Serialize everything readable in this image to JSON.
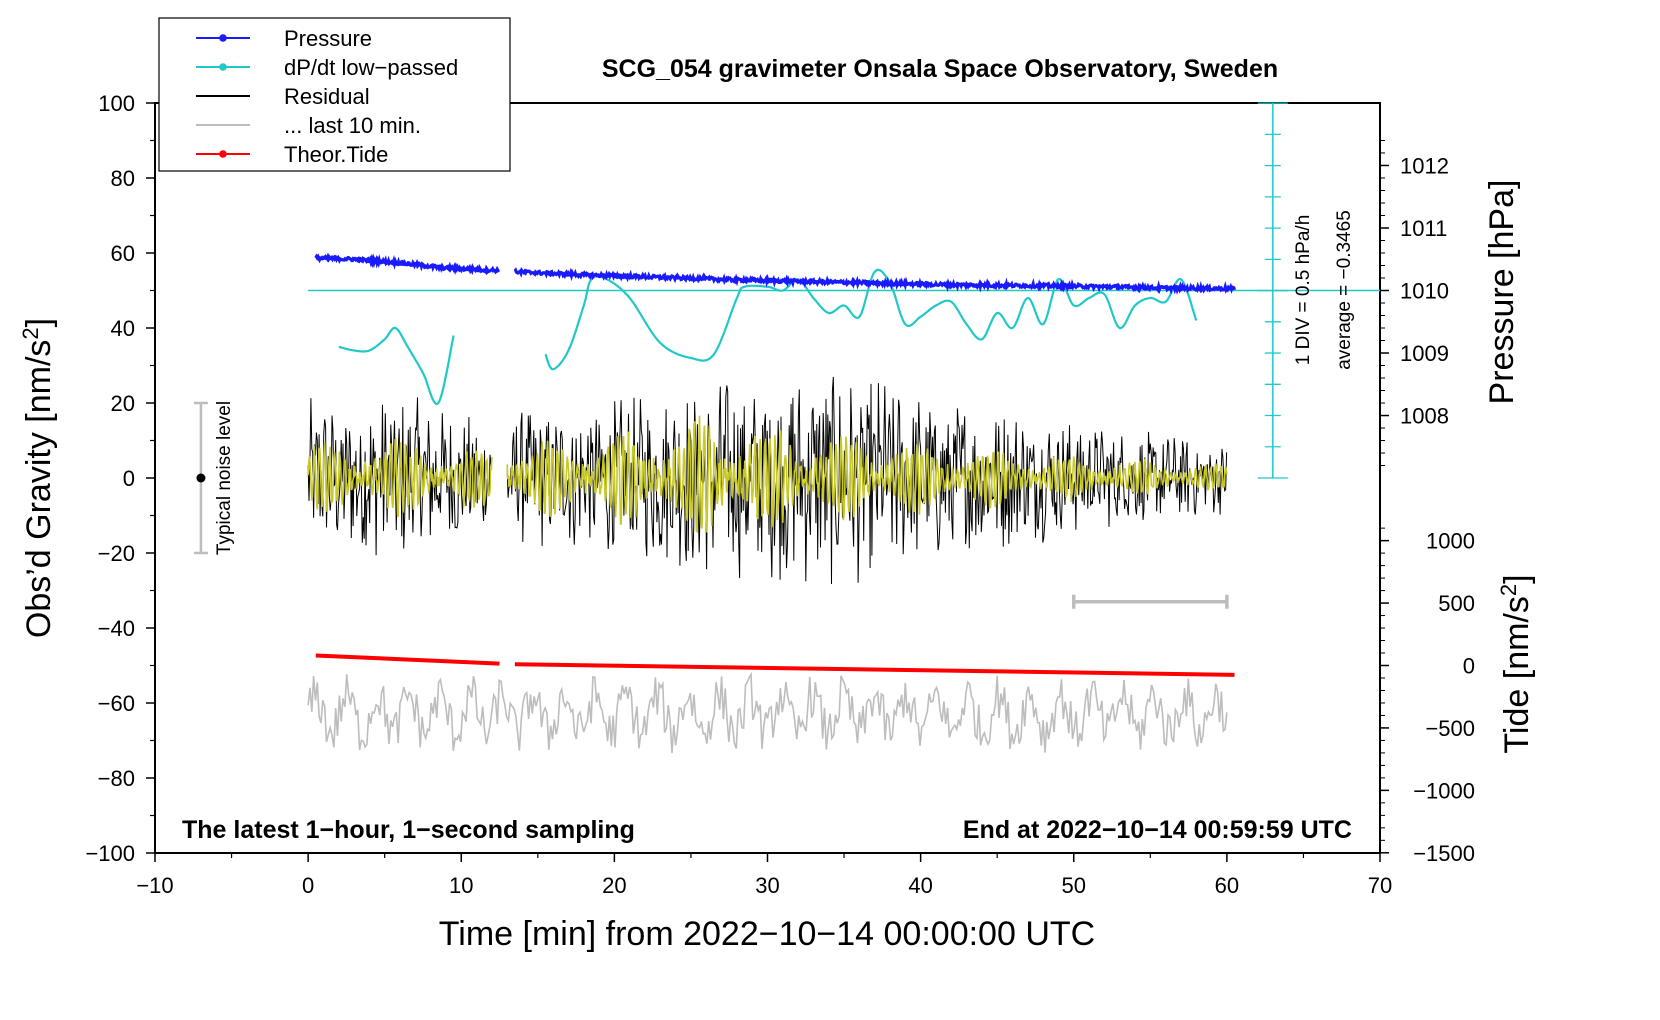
{
  "chart_data": {
    "type": "line",
    "title": "SCG_054 gravimeter Onsala Space Observatory, Sweden",
    "xlabel": "Time [min] from 2022−10−14 00:00:00 UTC",
    "ylabel_left": "Obs’d Gravity [nm/s",
    "ylabel_left_sup": "2",
    "ylabel_left_close": "]",
    "ylabel_right_pressure": "Pressure [hPa]",
    "ylabel_right_tide": "Tide [nm/s",
    "ylabel_right_tide_sup": "2",
    "ylabel_right_tide_close": "]",
    "xlim": [
      -10,
      70
    ],
    "ylim": [
      -100,
      100
    ],
    "x_ticks": [
      -10,
      0,
      10,
      20,
      30,
      40,
      50,
      60,
      70
    ],
    "x_tick_labels": [
      "−10",
      "0",
      "10",
      "20",
      "30",
      "40",
      "50",
      "60",
      "70"
    ],
    "y_ticks": [
      -100,
      -80,
      -60,
      -40,
      -20,
      0,
      20,
      40,
      60,
      80,
      100
    ],
    "y_tick_labels": [
      "−100",
      "−80",
      "−60",
      "−40",
      "−20",
      "0",
      "20",
      "40",
      "60",
      "80",
      "100"
    ],
    "pressure_ticks": [
      1008,
      1009,
      1010,
      1011,
      1012
    ],
    "pressure_axis": {
      "gravity_at_1010": 50,
      "gravity_per_hPa": 16.67
    },
    "tide_ticks": [
      -1500,
      -1000,
      -500,
      0,
      500,
      1000
    ],
    "tide_tick_labels": [
      "−1500",
      "−1000",
      "−500",
      "0",
      "500",
      "1000"
    ],
    "tide_axis": {
      "gravity_at_0": -50,
      "gravity_per_1000": 33.3
    },
    "legend": {
      "position": "top-left",
      "entries": [
        {
          "label": "Pressure",
          "color": "#1a1aff",
          "marker": true
        },
        {
          "label": "dP/dt low−passed",
          "color": "#22c8c8",
          "marker": true
        },
        {
          "label": "Residual",
          "color": "#000000",
          "marker": false
        },
        {
          "label": "... last 10 min.",
          "color": "#bdbdbd",
          "marker": false
        },
        {
          "label": "Theor.Tide",
          "color": "#ff0000",
          "marker": true
        }
      ]
    },
    "dpdt_annotation": {
      "line1": "1 DIV = 0.5 hPa/h",
      "line2": "average = −0.3465",
      "scale_x": 63,
      "scale_range_gravity": [
        0,
        100
      ],
      "reference_level_gravity": 50
    },
    "noise_level": {
      "label": "Typical noise level",
      "x": -7,
      "center": 0,
      "range": [
        -20,
        20
      ]
    },
    "last10_bar": {
      "x_range": [
        50,
        60
      ],
      "level": -33
    },
    "footer_left": "The latest 1−hour, 1−second sampling",
    "footer_right": "End at 2022−10−14 00:59:59 UTC",
    "series": [
      {
        "name": "Pressure",
        "unit": "hPa",
        "segments": [
          {
            "x": [
              0.5,
              3,
              6,
              9,
              12.5
            ],
            "y": [
              1010.52,
              1010.5,
              1010.44,
              1010.36,
              1010.32
            ]
          },
          {
            "x": [
              13.5,
              18,
              22,
              28,
              35,
              42,
              50,
              56,
              60.5
            ],
            "y": [
              1010.3,
              1010.25,
              1010.22,
              1010.17,
              1010.13,
              1010.09,
              1010.07,
              1010.04,
              1010.03
            ]
          }
        ]
      },
      {
        "name": "dP/dt low-passed",
        "unit": "gravity-axis units",
        "segments": [
          {
            "x": [
              2,
              3,
              4,
              5,
              5.7,
              6.5,
              7.5,
              8.5,
              9.5
            ],
            "y": [
              35,
              34,
              34,
              37,
              40,
              35,
              28,
              20,
              38
            ]
          },
          {
            "x": [
              15.5,
              16,
              17,
              18,
              18.5,
              19.5,
              21,
              23,
              25,
              26.5,
              28,
              28.5,
              30,
              31,
              32,
              33,
              34,
              35,
              36,
              37,
              38,
              39,
              40,
              41,
              42,
              43,
              44,
              45,
              46,
              47,
              48,
              49,
              50,
              51,
              52,
              53,
              54,
              55,
              56,
              57,
              58
            ],
            "y": [
              33,
              29,
              34,
              46,
              53,
              53,
              48,
              36,
              32,
              33,
              48,
              51,
              51,
              50,
              53,
              48,
              44,
              46,
              43,
              55,
              52,
              41,
              43,
              46,
              47,
              41,
              37,
              44,
              40,
              48,
              41,
              53,
              46,
              48,
              49,
              40,
              46,
              48,
              47,
              53,
              42
            ]
          }
        ]
      },
      {
        "name": "Residual",
        "unit": "nm/s2",
        "segments": [
          {
            "x_range": [
              0,
              12
            ],
            "amplitude": [
              22,
              20,
              24,
              22,
              18,
              16
            ]
          },
          {
            "x_range": [
              13,
              60
            ],
            "amplitude": [
              18,
              20,
              22,
              26,
              28,
              30,
              26,
              22,
              18,
              14,
              12,
              10
            ]
          }
        ]
      },
      {
        "name": "Residual smoothed",
        "color": "#c8c82a",
        "unit": "nm/s2",
        "segments": [
          {
            "x_range": [
              0,
              12
            ],
            "amplitude": [
              9,
              8,
              10,
              9,
              8,
              7
            ]
          },
          {
            "x_range": [
              13,
              60
            ],
            "amplitude": [
              8,
              9,
              11,
              14,
              12,
              10,
              9,
              7,
              6,
              5,
              4,
              3
            ]
          }
        ]
      },
      {
        "name": "... last 10 min.",
        "unit": "nm/s2",
        "segments": [
          {
            "x_range": [
              0,
              60
            ],
            "mean": -63,
            "amplitude": 10
          }
        ]
      },
      {
        "name": "Theor.Tide",
        "unit": "nm/s2",
        "segments": [
          {
            "x": [
              0.5,
              12.5
            ],
            "y": [
              80,
              15
            ]
          },
          {
            "x": [
              13.5,
              60.5
            ],
            "y": [
              10,
              -75
            ]
          }
        ]
      }
    ]
  }
}
